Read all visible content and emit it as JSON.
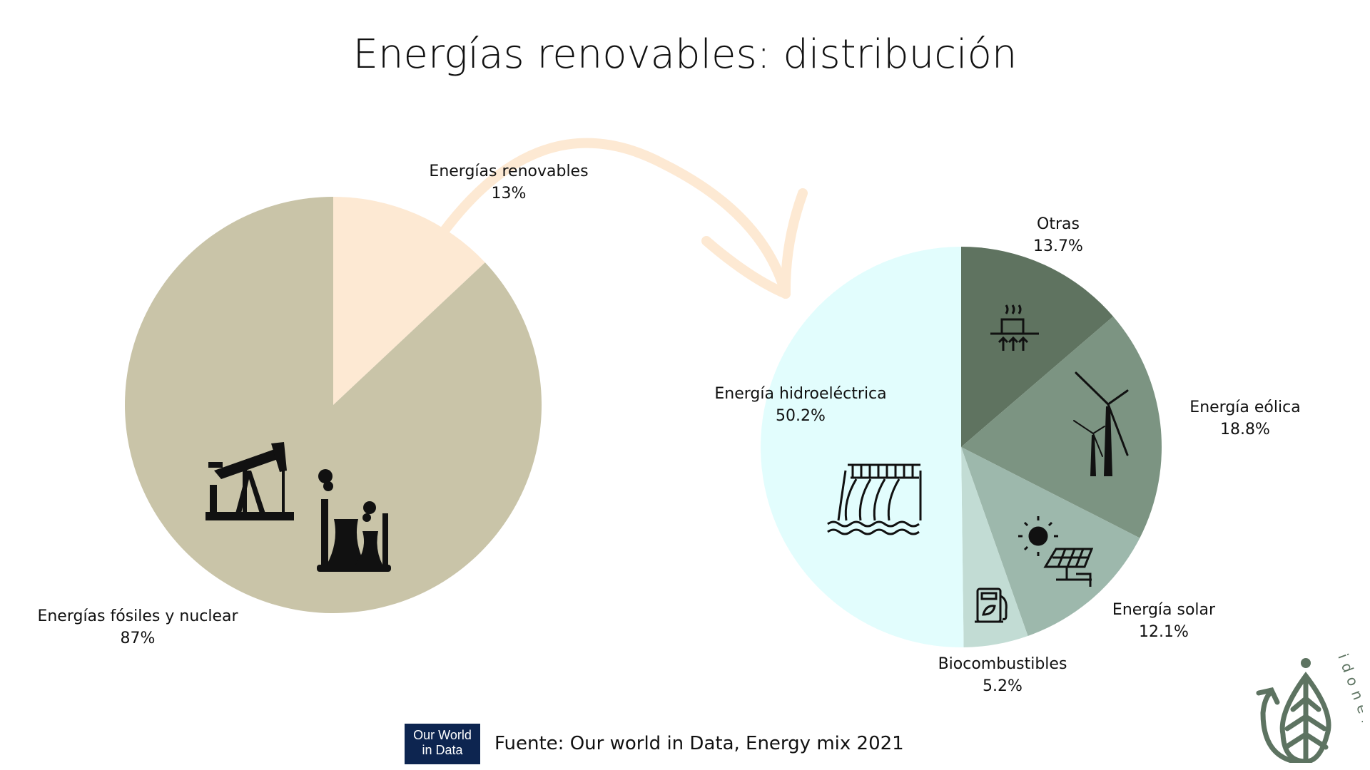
{
  "title": "Energías renovables: distribución",
  "chart_data": [
    {
      "type": "pie",
      "title": "",
      "categories": [
        "Energías renovables",
        "Energías fósiles y nuclear"
      ],
      "values": [
        13,
        87
      ],
      "labels": [
        "13%",
        "87%"
      ],
      "colors": [
        "#fde9d3",
        "#c9c4a8"
      ]
    },
    {
      "type": "pie",
      "title": "",
      "categories": [
        "Otras",
        "Energía eólica",
        "Energía solar",
        "Biocombustibles",
        "Energía hidroeléctrica"
      ],
      "values": [
        13.7,
        18.8,
        12.1,
        5.2,
        50.2
      ],
      "labels": [
        "13.7%",
        "18.8%",
        "12.1%",
        "5.2%",
        "50.2%"
      ],
      "colors": [
        "#5f7360",
        "#7c9482",
        "#9db8ac",
        "#c2dcd4",
        "#e2fdfd"
      ]
    }
  ],
  "footer": {
    "owid_logo_line1": "Our World",
    "owid_logo_line2": "in Data",
    "source": "Fuente: Our world in Data, Energy mix 2021"
  },
  "brand": {
    "logo_text": "idonella",
    "color": "#5d7361"
  },
  "arrow_color": "#fde9d3"
}
